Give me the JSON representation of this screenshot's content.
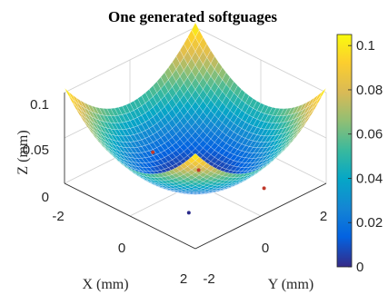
{
  "chart_data": {
    "type": "surface3d",
    "title": "One generated softguages",
    "xlabel": "X (mm)",
    "ylabel": "Y (mm)",
    "zlabel": "Z (mm)",
    "xlim": [
      -2,
      2
    ],
    "ylim": [
      -2,
      2
    ],
    "zlim": [
      0,
      0.1
    ],
    "x_ticks": [
      "-2",
      "0",
      "2"
    ],
    "y_ticks": [
      "-2",
      "0",
      "2"
    ],
    "z_ticks": [
      "0",
      "0.05",
      "0.1"
    ],
    "colorbar": {
      "min": 0,
      "max": 0.105,
      "ticks": [
        "0",
        "0.02",
        "0.04",
        "0.06",
        "0.08",
        "0.1"
      ],
      "tick_values": [
        0,
        0.02,
        0.04,
        0.06,
        0.08,
        0.1
      ]
    },
    "colormap": "parula",
    "grid": true,
    "surface": {
      "description_formula": "z = max over quadratic bowl",
      "x_range": [
        -2,
        2
      ],
      "y_range": [
        -2,
        2
      ],
      "z_min": 0,
      "z_max": 0.105
    },
    "markers": [
      {
        "x": -1.6,
        "y": 0.3,
        "z": 0.0,
        "color": "#c0392b"
      },
      {
        "x": 0.2,
        "y": -0.1,
        "z": 0.02,
        "color": "#c0392b"
      },
      {
        "x": 1.2,
        "y": 0.9,
        "z": 0.0,
        "color": "#c0392b"
      },
      {
        "x": 0.8,
        "y": -1.0,
        "z": 0.0,
        "color": "#2a2a8a"
      }
    ]
  }
}
